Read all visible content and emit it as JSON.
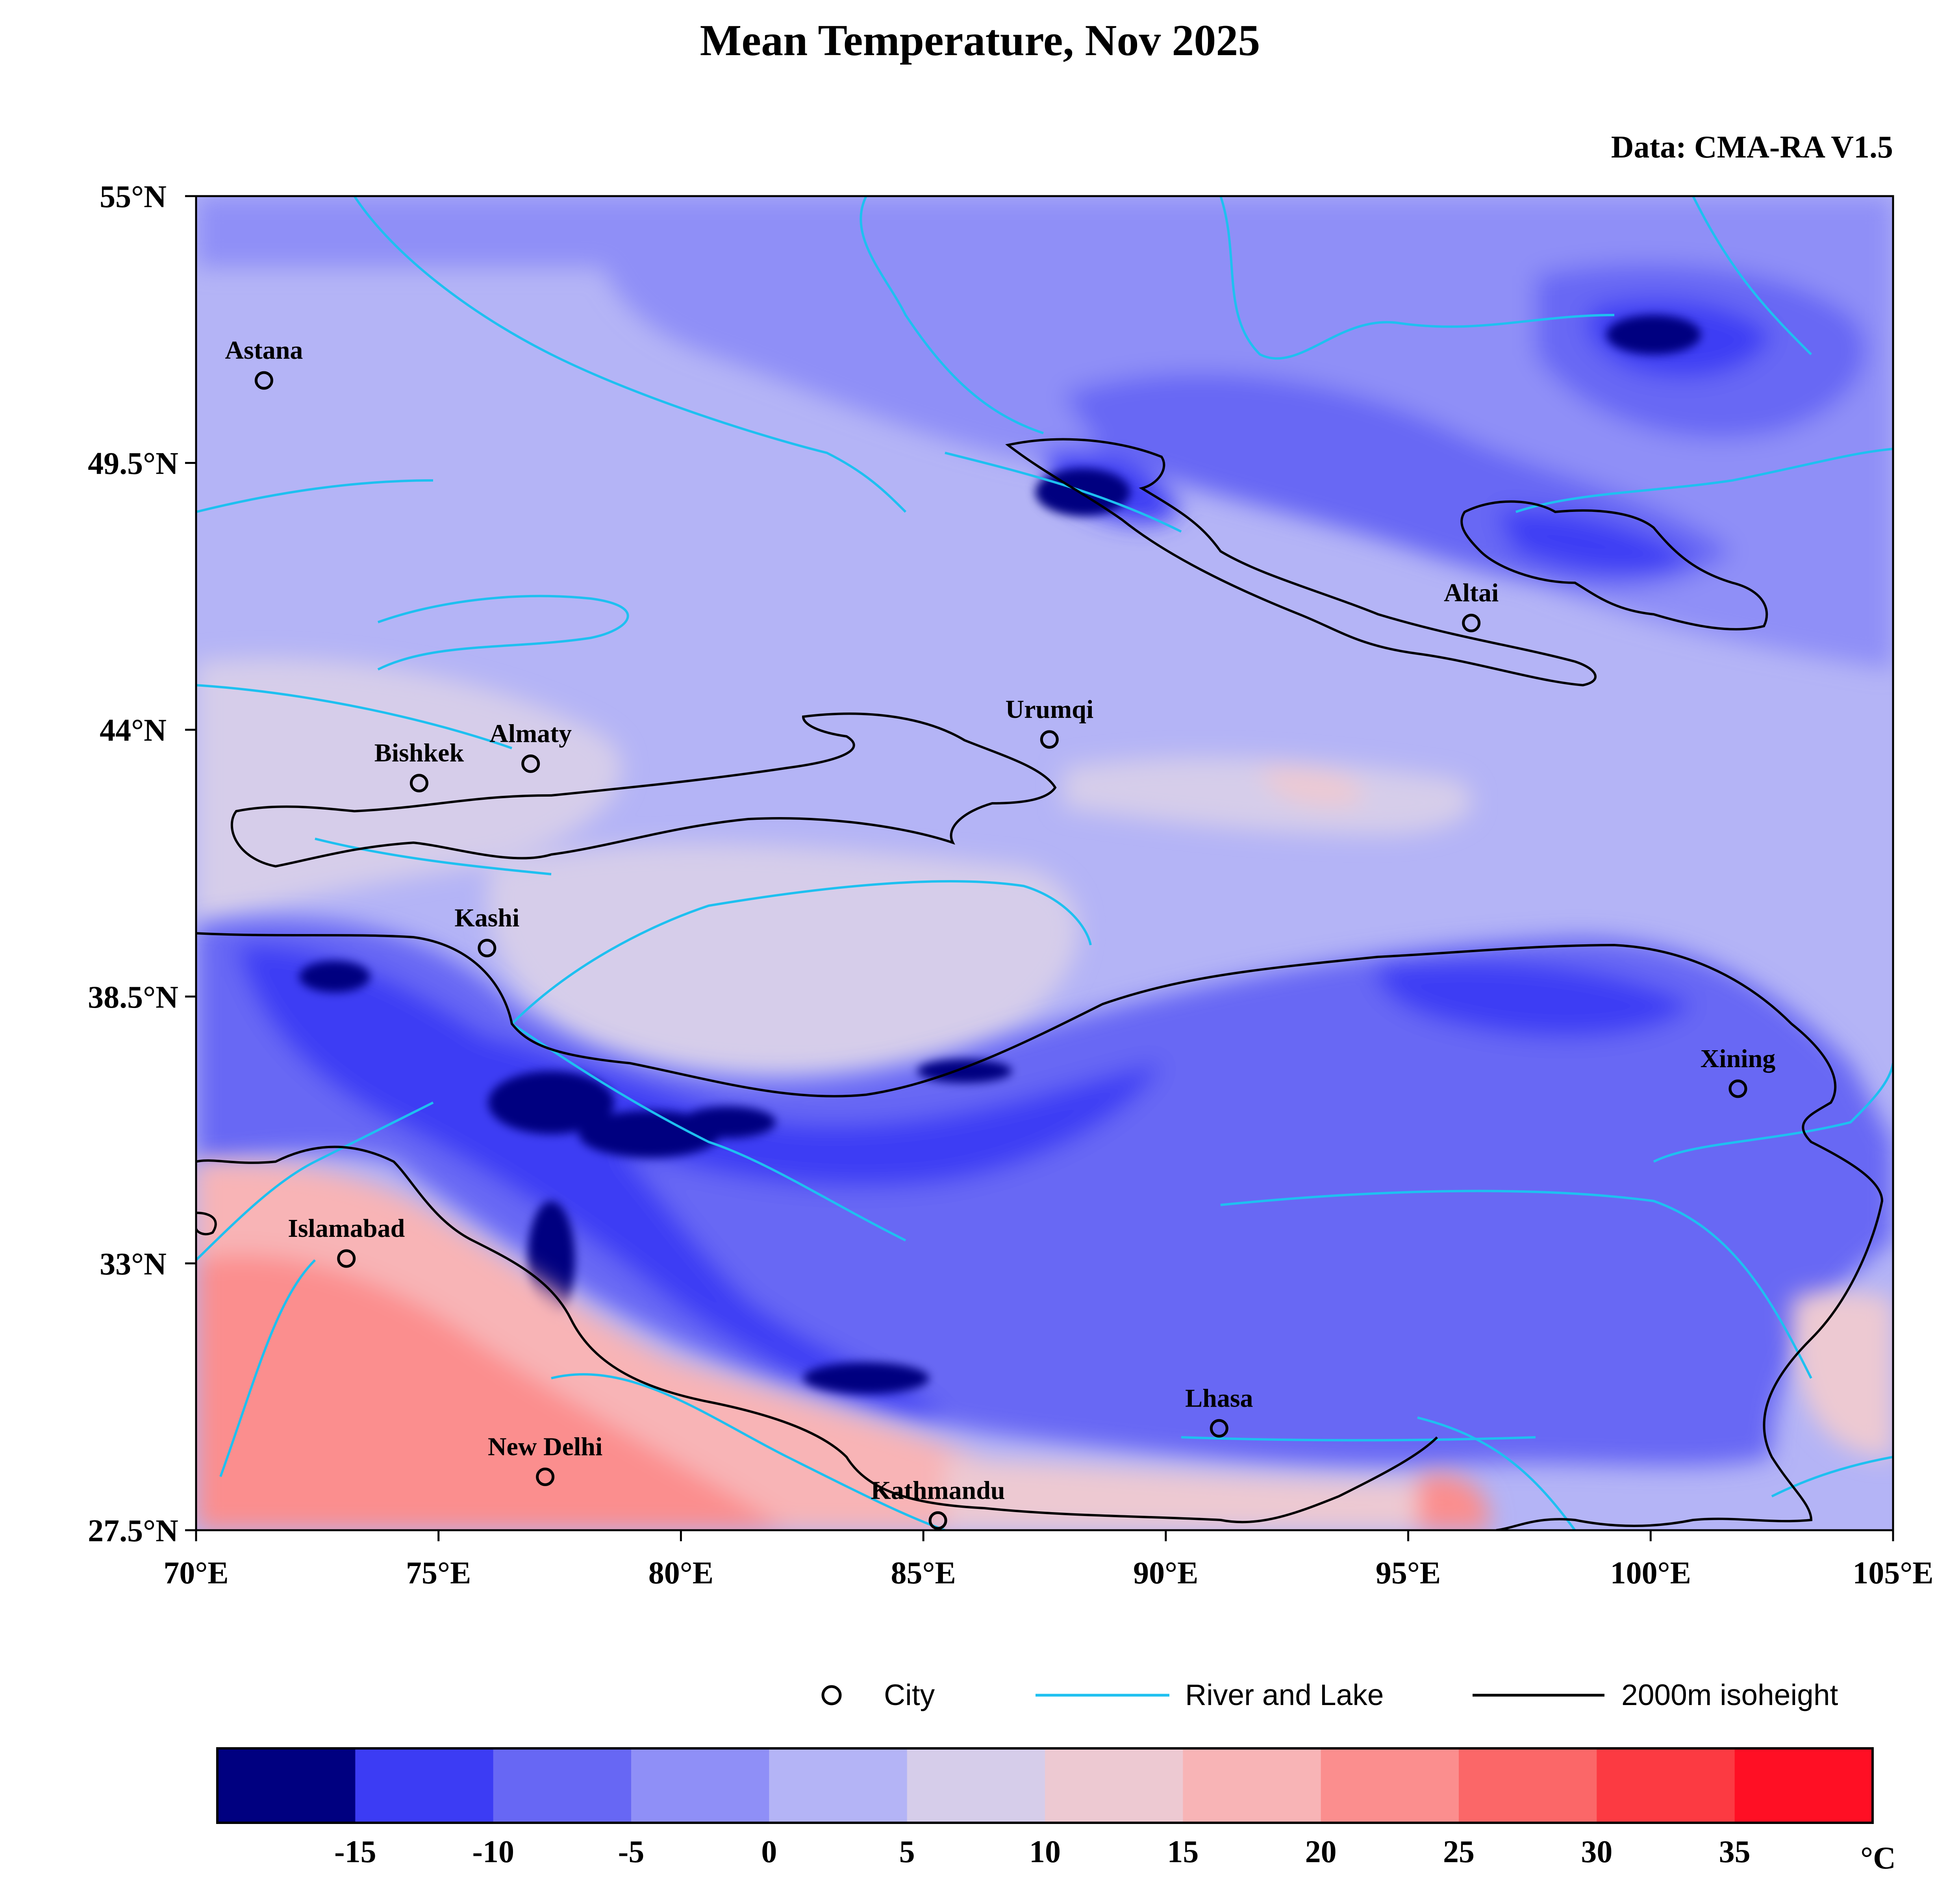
{
  "title": "Mean Temperature, Nov 2025",
  "source": "Data: CMA-RA V1.5",
  "map": {
    "lon_range": [
      70,
      105
    ],
    "lat_range": [
      27.5,
      55
    ],
    "x_ticks": [
      {
        "lon": 70,
        "label": "70°E"
      },
      {
        "lon": 75,
        "label": "75°E"
      },
      {
        "lon": 80,
        "label": "80°E"
      },
      {
        "lon": 85,
        "label": "85°E"
      },
      {
        "lon": 90,
        "label": "90°E"
      },
      {
        "lon": 95,
        "label": "95°E"
      },
      {
        "lon": 100,
        "label": "100°E"
      },
      {
        "lon": 105,
        "label": "105°E"
      }
    ],
    "y_ticks": [
      {
        "lat": 55,
        "label": "55°N"
      },
      {
        "lat": 49.5,
        "label": "49.5°N"
      },
      {
        "lat": 44,
        "label": "44°N"
      },
      {
        "lat": 38.5,
        "label": "38.5°N"
      },
      {
        "lat": 33,
        "label": "33°N"
      },
      {
        "lat": 27.5,
        "label": "27.5°N"
      }
    ],
    "cities": [
      {
        "name": "Astana",
        "lon": 71.4,
        "lat": 51.2
      },
      {
        "name": "Bishkek",
        "lon": 74.6,
        "lat": 42.9
      },
      {
        "name": "Almaty",
        "lon": 76.9,
        "lat": 43.3
      },
      {
        "name": "Urumqi",
        "lon": 87.6,
        "lat": 43.8
      },
      {
        "name": "Altai",
        "lon": 96.3,
        "lat": 46.2
      },
      {
        "name": "Kashi",
        "lon": 76.0,
        "lat": 39.5
      },
      {
        "name": "Xining",
        "lon": 101.8,
        "lat": 36.6
      },
      {
        "name": "Islamabad",
        "lon": 73.1,
        "lat": 33.1
      },
      {
        "name": "Lhasa",
        "lon": 91.1,
        "lat": 29.6
      },
      {
        "name": "New Delhi",
        "lon": 77.2,
        "lat": 28.6
      },
      {
        "name": "Kathmandu",
        "lon": 85.3,
        "lat": 27.7
      }
    ]
  },
  "legend": {
    "city_label": "City",
    "river_label": "River and Lake",
    "isoheight_label": "2000m isoheight",
    "river_color": "#1ec0f0",
    "isoheight_color": "#000000"
  },
  "colorbar": {
    "unit": "°C",
    "colors": [
      "#000080",
      "#3c3cf4",
      "#6767f4",
      "#8f8ff7",
      "#b4b4f6",
      "#d6cdea",
      "#edc9d2",
      "#f8b4b6",
      "#fb8e8e",
      "#fb6768",
      "#fc3a42",
      "#ff0f24"
    ],
    "tick_labels": [
      "-15",
      "-10",
      "-5",
      "0",
      "5",
      "10",
      "15",
      "20",
      "25",
      "30",
      "35"
    ]
  }
}
